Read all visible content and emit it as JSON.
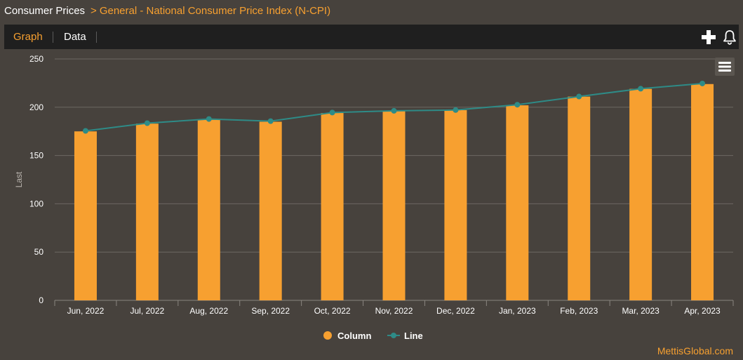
{
  "breadcrumb": {
    "root": "Consumer Prices",
    "separator": ">",
    "current": "General - National Consumer Price Index (N-CPI)"
  },
  "tabs": [
    {
      "label": "Graph",
      "active": true
    },
    {
      "label": "Data",
      "active": false
    }
  ],
  "toolbar_icons": [
    "plus-icon",
    "bell-icon"
  ],
  "colors": {
    "accent": "#f7a030",
    "column": "#f7a030",
    "line": "#2e8b87",
    "background": "#47423d"
  },
  "credit": "MettisGlobal.com",
  "chart_data": {
    "type": "bar",
    "title": "",
    "xlabel": "",
    "ylabel": "Last",
    "ylim": [
      0,
      250
    ],
    "yticks": [
      0,
      50,
      100,
      150,
      200,
      250
    ],
    "grid": true,
    "legend_position": "bottom",
    "categories": [
      "Jun, 2022",
      "Jul, 2022",
      "Aug, 2022",
      "Sep, 2022",
      "Oct, 2022",
      "Nov, 2022",
      "Dec, 2022",
      "Jan, 2023",
      "Feb, 2023",
      "Mar, 2023",
      "Apr, 2023"
    ],
    "series": [
      {
        "name": "Column",
        "type": "column",
        "values": [
          175,
          183,
          187,
          185,
          194,
          196,
          197,
          202,
          211,
          219,
          224
        ]
      },
      {
        "name": "Line",
        "type": "line",
        "values": [
          175.5,
          183.5,
          187.8,
          185.6,
          194.5,
          196.3,
          197.1,
          202.6,
          211.1,
          219.2,
          224.6
        ]
      }
    ]
  }
}
